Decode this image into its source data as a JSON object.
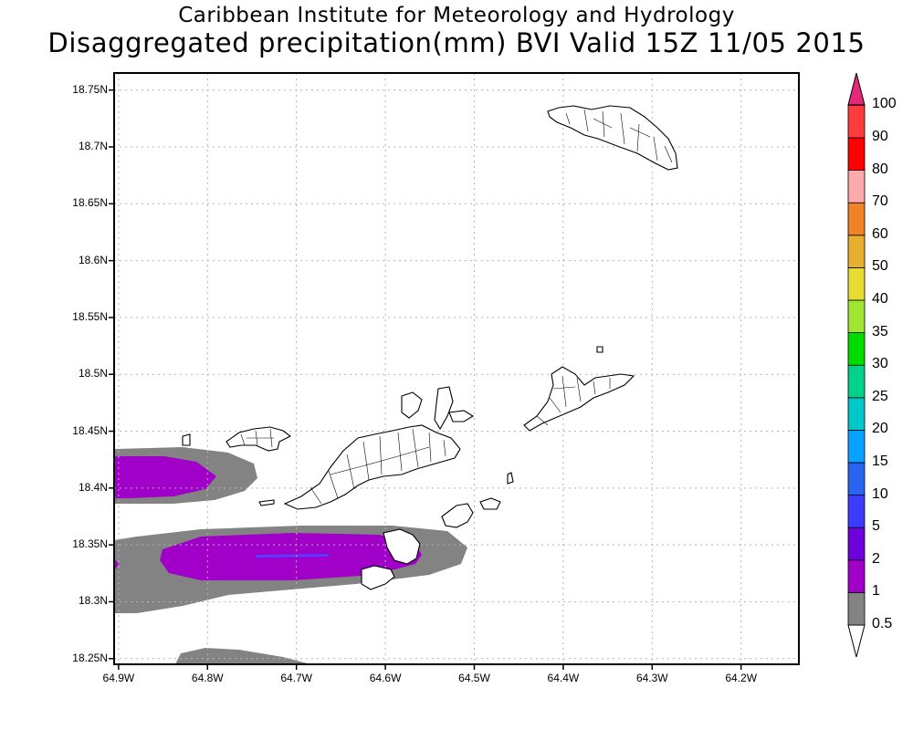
{
  "header": {
    "line1": "Caribbean Institute for Meteorology and Hydrology",
    "line2": "Disaggregated precipitation(mm) BVI Valid 15Z 11/05 2015"
  },
  "map": {
    "lat_ticks": [
      "18.75N",
      "18.7N",
      "18.65N",
      "18.6N",
      "18.55N",
      "18.5N",
      "18.45N",
      "18.4N",
      "18.35N",
      "18.3N",
      "18.25N"
    ],
    "lon_ticks": [
      "64.9W",
      "64.8W",
      "64.7W",
      "64.6W",
      "64.5W",
      "64.4W",
      "64.3W",
      "64.2W"
    ],
    "lat_range": [
      18.245,
      18.765
    ],
    "lon_range": [
      -64.905,
      -64.135
    ],
    "gridlines": true,
    "precip_colors": {
      "gray": "#838383",
      "purple": "#a000c8",
      "blue": "#5a3cff"
    }
  },
  "colorbar": {
    "placement": "right",
    "levels": [
      "0.5",
      "1",
      "2",
      "5",
      "10",
      "15",
      "20",
      "25",
      "30",
      "35",
      "40",
      "50",
      "60",
      "70",
      "80",
      "90",
      "100"
    ],
    "colors": [
      "#838383",
      "#a000c8",
      "#6e00dc",
      "#3c3cff",
      "#2864f0",
      "#0aa0ff",
      "#00c8c8",
      "#00d28c",
      "#00dc00",
      "#a0e632",
      "#e6dc32",
      "#e6af2d",
      "#f08228",
      "#faaaaa",
      "#ff0000",
      "#ff3c3c",
      "#e6287a"
    ]
  }
}
